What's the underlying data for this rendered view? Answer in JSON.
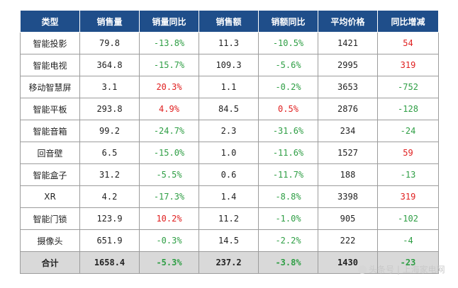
{
  "table": {
    "headers": [
      "类型",
      "销售量",
      "销量同比",
      "销售额",
      "销额同比",
      "平均价格",
      "同比增减"
    ],
    "rows": [
      [
        "智能投影",
        "79.8",
        "-13.8%",
        "11.3",
        "-10.5%",
        "1421",
        "54"
      ],
      [
        "智能电视",
        "364.8",
        "-15.7%",
        "109.3",
        "-5.6%",
        "2995",
        "319"
      ],
      [
        "移动智慧屏",
        "3.1",
        "20.3%",
        "1.1",
        "-0.2%",
        "3653",
        "-752"
      ],
      [
        "智能平板",
        "293.8",
        "4.9%",
        "84.5",
        "0.5%",
        "2876",
        "-128"
      ],
      [
        "智能音箱",
        "99.2",
        "-24.7%",
        "2.3",
        "-31.6%",
        "234",
        "-24"
      ],
      [
        "回音壁",
        "6.5",
        "-15.0%",
        "1.0",
        "-11.6%",
        "1527",
        "59"
      ],
      [
        "智能盒子",
        "31.2",
        "-5.5%",
        "0.6",
        "-11.7%",
        "188",
        "-13"
      ],
      [
        "XR",
        "4.2",
        "-17.3%",
        "1.4",
        "-8.8%",
        "3398",
        "319"
      ],
      [
        "智能门锁",
        "123.9",
        "10.2%",
        "11.2",
        "-1.0%",
        "905",
        "-102"
      ],
      [
        "摄像头",
        "651.9",
        "-0.3%",
        "14.5",
        "-2.2%",
        "222",
        "-4"
      ]
    ],
    "total": [
      "合计",
      "1658.4",
      "-5.3%",
      "237.2",
      "-3.8%",
      "1430",
      "-23"
    ]
  },
  "watermark": "头条号 | 上海家电网",
  "colors": {
    "header_bg": "#1f4e8a",
    "negative": "#2e9e44",
    "positive": "#e02020",
    "total_bg": "#d9d9d9"
  }
}
